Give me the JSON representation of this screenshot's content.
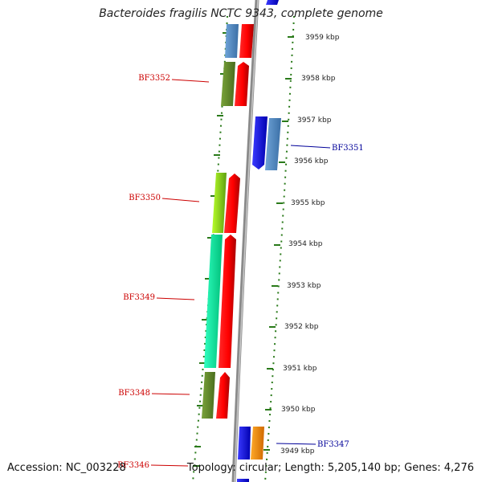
{
  "title": "Bacteroides fragilis NCTC 9343, complete genome",
  "footer": {
    "accession": "Accession: NC_003228",
    "topology": "Topology: circular; Length: 5,205,140 bp; Genes: 4,276"
  },
  "colors": {
    "forward_label": "#cc0000",
    "reverse_label": "#000099",
    "tick": "#2a7a1a",
    "backbone": "#888888"
  },
  "scale_labels": [
    "3959 kbp",
    "3958 kbp",
    "3957 kbp",
    "3956 kbp",
    "3955 kbp",
    "3954 kbp",
    "3953 kbp",
    "3952 kbp",
    "3951 kbp",
    "3950 kbp",
    "3949 kbp"
  ],
  "gene_labels": [
    {
      "name": "BF3352",
      "strand": "forward"
    },
    {
      "name": "BF3351",
      "strand": "reverse"
    },
    {
      "name": "BF3350",
      "strand": "forward"
    },
    {
      "name": "BF3349",
      "strand": "forward"
    },
    {
      "name": "BF3348",
      "strand": "forward"
    },
    {
      "name": "BF3347",
      "strand": "reverse"
    },
    {
      "name": "BF3346",
      "strand": "forward"
    }
  ]
}
